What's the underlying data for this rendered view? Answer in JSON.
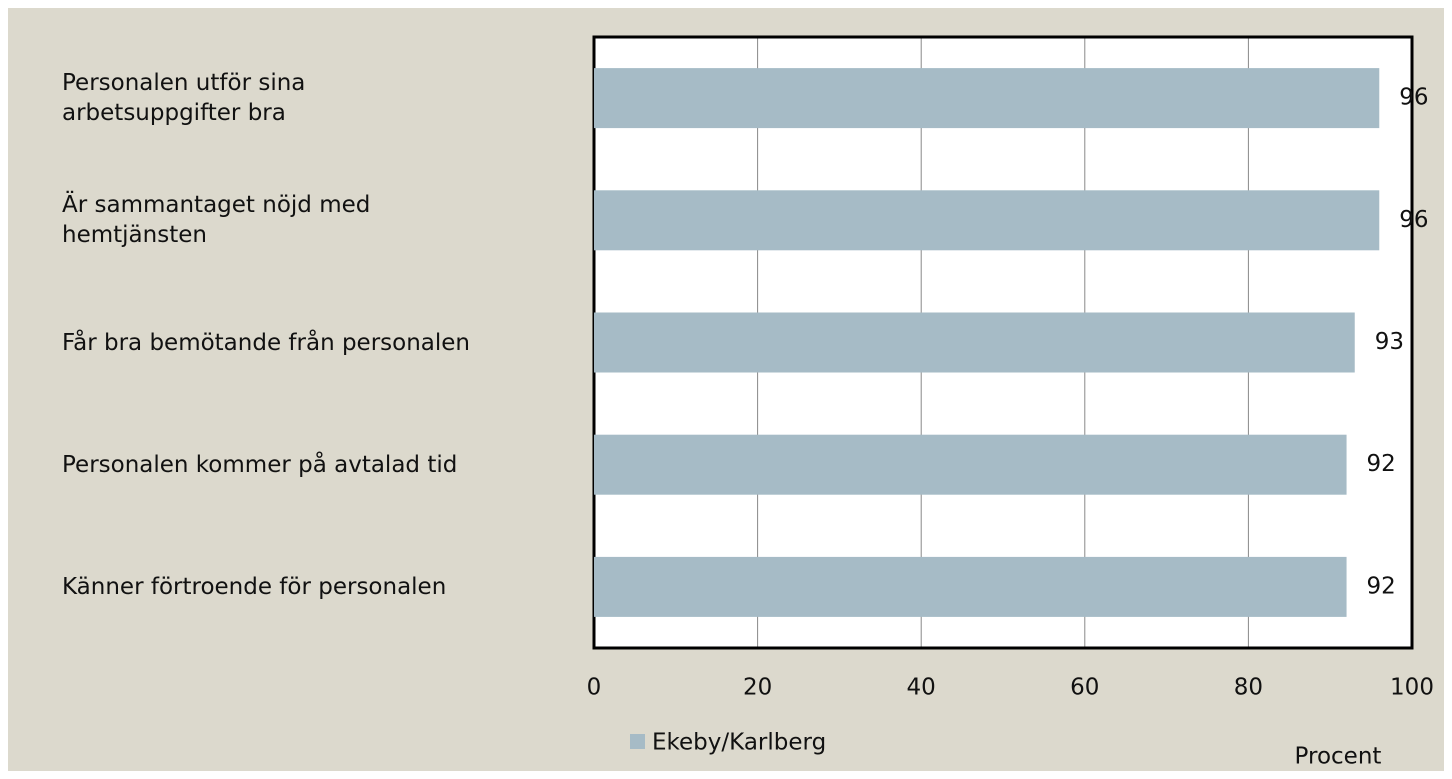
{
  "chart_data": {
    "type": "bar",
    "orientation": "horizontal",
    "categories": [
      "Personalen utför sina\narbetsuppgifter bra",
      "Är sammantaget nöjd med\nhemtjänsten",
      "Får bra bemötande från personalen",
      "Personalen kommer på avtalad tid",
      "Känner förtroende för personalen"
    ],
    "series": [
      {
        "name": "Ekeby/Karlberg",
        "color": "#a6bbc6",
        "values": [
          96,
          96,
          93,
          92,
          92
        ]
      }
    ],
    "xlim": [
      0,
      100
    ],
    "xticks": [
      0,
      20,
      40,
      60,
      80,
      100
    ],
    "x_label": "Procent",
    "grid": true,
    "legend": "bottom"
  }
}
